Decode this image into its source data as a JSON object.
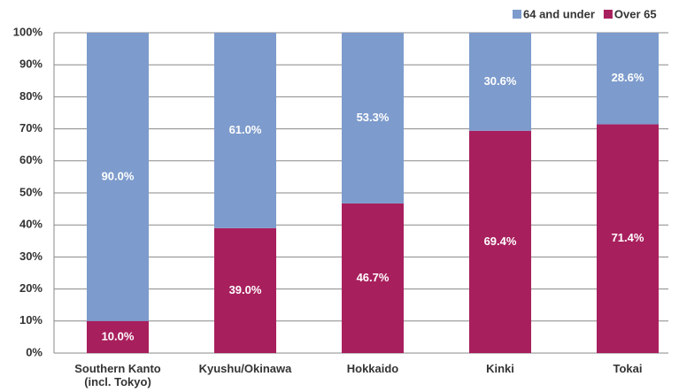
{
  "chart_data": {
    "type": "stacked_bar",
    "categories": [
      "Southern Kanto\n(incl. Tokyo)",
      "Kyushu/Okinawa",
      "Hokkaido",
      "Kinki",
      "Tokai"
    ],
    "series": [
      {
        "name": "64 and under",
        "color": "#7d9bcc",
        "values": [
          90.0,
          61.0,
          53.3,
          30.6,
          28.6
        ],
        "value_labels": [
          "90.0%",
          "61.0%",
          "53.3%",
          "30.6%",
          "28.6%"
        ]
      },
      {
        "name": "Over 65",
        "color": "#a81f5d",
        "values": [
          10.0,
          39.0,
          46.7,
          69.4,
          71.4
        ],
        "value_labels": [
          "10.0%",
          "39.0%",
          "46.7%",
          "69.4%",
          "71.4%"
        ]
      }
    ],
    "ylim": [
      0,
      100
    ],
    "yticks": [
      {
        "value": 0,
        "label": "0%"
      },
      {
        "value": 10,
        "label": "10%"
      },
      {
        "value": 20,
        "label": "20%"
      },
      {
        "value": 30,
        "label": "30%"
      },
      {
        "value": 40,
        "label": "40%"
      },
      {
        "value": 50,
        "label": "50%"
      },
      {
        "value": 60,
        "label": "60%"
      },
      {
        "value": 70,
        "label": "70%"
      },
      {
        "value": 80,
        "label": "80%"
      },
      {
        "value": 90,
        "label": "90%"
      },
      {
        "value": 100,
        "label": "100%"
      }
    ],
    "grid": true,
    "legend": "top-right"
  }
}
